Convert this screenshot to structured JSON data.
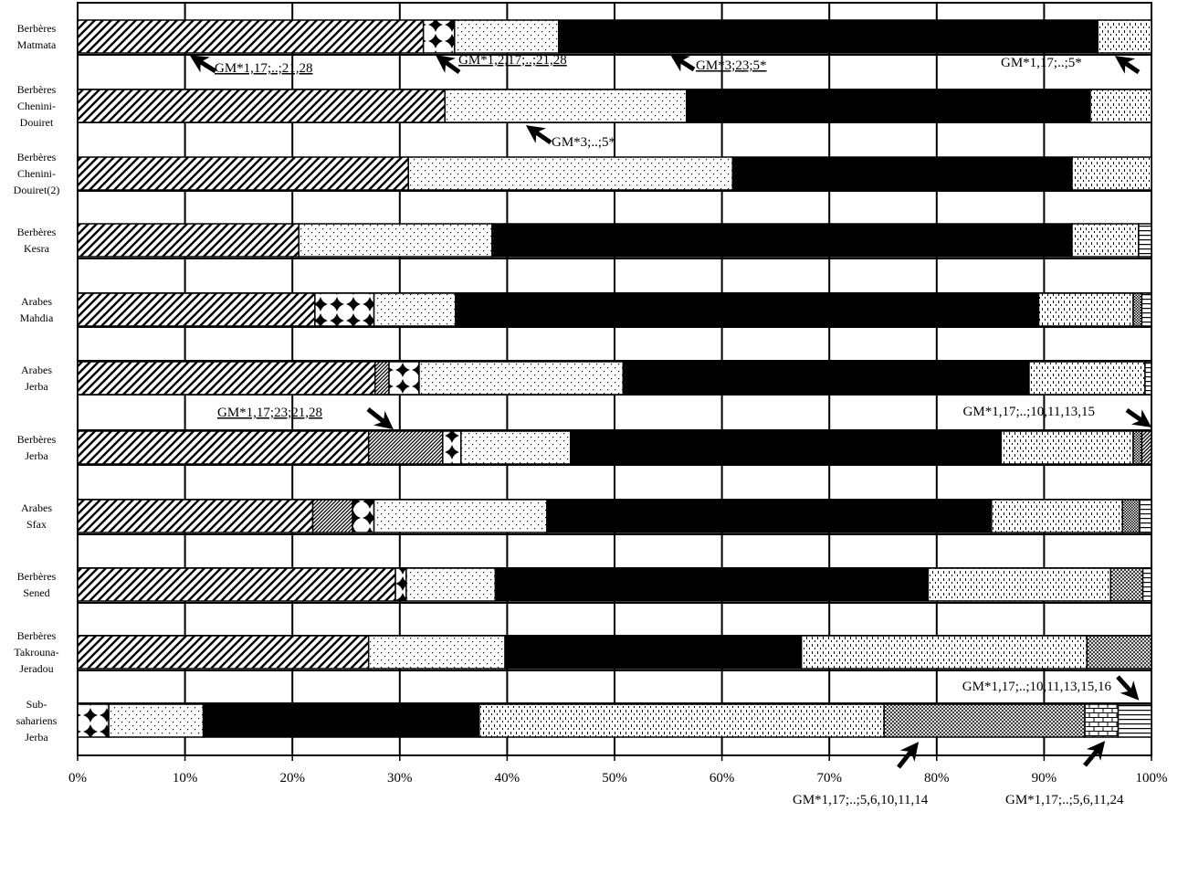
{
  "chart_data": {
    "type": "bar",
    "orientation": "horizontal",
    "stacked": true,
    "percent_scale": true,
    "xlim": [
      0,
      100
    ],
    "x_ticks": [
      "0%",
      "10%",
      "20%",
      "30%",
      "40%",
      "50%",
      "60%",
      "70%",
      "80%",
      "90%",
      "100%"
    ],
    "grid": true,
    "legend": "none",
    "categories": [
      [
        "Berbères",
        "Matmata"
      ],
      [
        "Berbères",
        "Chenini-",
        "Douiret"
      ],
      [
        "Berbères",
        "Chenini-",
        "Douiret(2)"
      ],
      [
        "Berbères",
        "Kesra"
      ],
      [
        "Arabes",
        "Mahdia"
      ],
      [
        "Arabes",
        "Jerba"
      ],
      [
        "Berbères",
        "Jerba"
      ],
      [
        "Arabes",
        "Sfax"
      ],
      [
        "Berbères",
        "Sened"
      ],
      [
        "Berbères",
        "Takrouna-",
        "Jeradou"
      ],
      [
        "Sub-",
        "sahariens",
        "Jerba"
      ]
    ],
    "segments": [
      [
        [
          "diag",
          0,
          32.2
        ],
        [
          "cross",
          32.2,
          35.1
        ],
        [
          "dots",
          35.1,
          44.8
        ],
        [
          "solid",
          44.8,
          95.0
        ],
        [
          "vert",
          95.0,
          100
        ]
      ],
      [
        [
          "diag",
          0,
          34.2
        ],
        [
          "dots",
          34.2,
          56.7
        ],
        [
          "solid",
          56.7,
          94.3
        ],
        [
          "vert",
          94.3,
          100
        ]
      ],
      [
        [
          "diag",
          0,
          30.8
        ],
        [
          "dots",
          30.8,
          61.0
        ],
        [
          "solid",
          61.0,
          92.6
        ],
        [
          "vert",
          92.6,
          100
        ]
      ],
      [
        [
          "diag",
          0,
          20.6
        ],
        [
          "dots",
          20.6,
          38.6
        ],
        [
          "solid",
          38.6,
          92.6
        ],
        [
          "vert",
          92.6,
          98.8
        ],
        [
          "horiz",
          98.8,
          100
        ]
      ],
      [
        [
          "diag",
          0,
          22.1
        ],
        [
          "cross",
          22.1,
          27.6
        ],
        [
          "dots",
          27.6,
          35.2
        ],
        [
          "solid",
          35.2,
          89.5
        ],
        [
          "vert",
          89.5,
          98.3
        ],
        [
          "smallcheck",
          98.3,
          99.1
        ],
        [
          "horiz",
          99.1,
          100
        ]
      ],
      [
        [
          "diag",
          0,
          27.7
        ],
        [
          "densediag",
          27.7,
          29.0
        ],
        [
          "cross",
          29.0,
          31.8
        ],
        [
          "dots",
          31.8,
          50.8
        ],
        [
          "solid",
          50.8,
          88.6
        ],
        [
          "vert",
          88.6,
          99.4
        ],
        [
          "horiz",
          99.4,
          100
        ]
      ],
      [
        [
          "diag",
          0,
          27.1
        ],
        [
          "densediag",
          27.1,
          34.0
        ],
        [
          "cross",
          34.0,
          35.7
        ],
        [
          "dots",
          35.7,
          45.9
        ],
        [
          "solid",
          45.9,
          86.0
        ],
        [
          "vert",
          86.0,
          98.3
        ],
        [
          "smallcheck",
          98.3,
          99.1
        ],
        [
          "densediag",
          99.1,
          100
        ]
      ],
      [
        [
          "diag",
          0,
          21.9
        ],
        [
          "densediag",
          21.9,
          25.6
        ],
        [
          "cross",
          25.6,
          27.6
        ],
        [
          "dots",
          27.6,
          43.7
        ],
        [
          "solid",
          43.7,
          85.1
        ],
        [
          "vert",
          85.1,
          97.3
        ],
        [
          "smallcheck",
          97.3,
          98.9
        ],
        [
          "horiz",
          98.9,
          100
        ]
      ],
      [
        [
          "diag",
          0,
          29.6
        ],
        [
          "cross",
          29.6,
          30.6
        ],
        [
          "dots",
          30.6,
          38.9
        ],
        [
          "solid",
          38.9,
          79.2
        ],
        [
          "vert",
          79.2,
          96.2
        ],
        [
          "net",
          96.2,
          99.2
        ],
        [
          "horiz",
          99.2,
          100
        ]
      ],
      [
        [
          "diag",
          0,
          27.1
        ],
        [
          "dots",
          27.1,
          39.8
        ],
        [
          "solid",
          39.8,
          67.4
        ],
        [
          "vert",
          67.4,
          94.0
        ],
        [
          "net",
          94.0,
          100
        ]
      ],
      [
        [
          "cross",
          0,
          2.9
        ],
        [
          "dots",
          2.9,
          11.7
        ],
        [
          "solid",
          11.7,
          37.4
        ],
        [
          "vert",
          37.4,
          75.1
        ],
        [
          "net",
          75.1,
          93.8
        ],
        [
          "brick",
          93.8,
          96.9
        ],
        [
          "horiz",
          96.9,
          100
        ]
      ]
    ],
    "annotations": [
      {
        "text": "GM*1,17;..;21,28",
        "underline": true
      },
      {
        "text": "GM*1,2,17;..;21,28",
        "underline": true
      },
      {
        "text": "GM*3;23;5*",
        "underline": true
      },
      {
        "text": "GM*1,17;..;5*",
        "underline": false
      },
      {
        "text": "GM*3;..;5*",
        "underline": false
      },
      {
        "text": "GM*1,17;23;21,28",
        "underline": true
      },
      {
        "text": "GM*1,17;..;10,11,13,15",
        "underline": false
      },
      {
        "text": "GM*1,17;..;10,11,13,15,16",
        "underline": false
      },
      {
        "text": "GM*1,17;..;5,6,10,11,14",
        "underline": false
      },
      {
        "text": "GM*1,17;..;5,6,11,24",
        "underline": false
      }
    ]
  }
}
